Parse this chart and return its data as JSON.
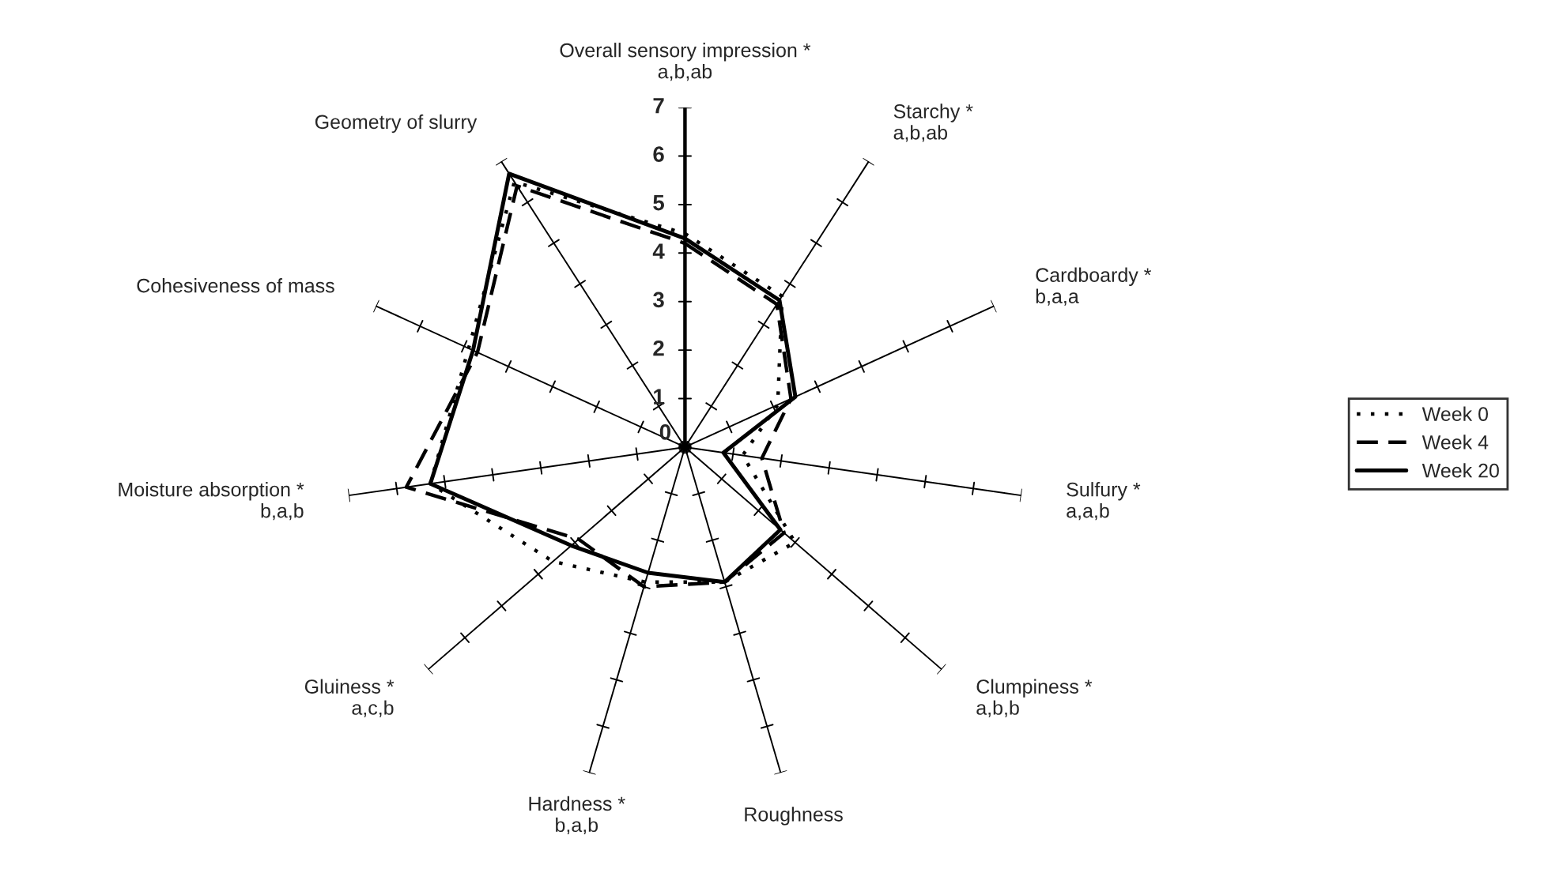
{
  "chart_data": {
    "type": "radar",
    "categories": [
      "Overall sensory impression *\na,b,ab",
      "Starchy *\na,b,ab",
      "Cardboardy *\nb,a,a",
      "Sulfury *\na,a,b",
      "Clumpiness *\na,b,b",
      "Roughness",
      "Hardness *\nb,a,b",
      "Gluiness *\na,c,b",
      "Moisture absorption *\nb,a,b",
      "Cohesiveness of mass",
      "Geometry of slurry"
    ],
    "ylim": [
      0,
      7
    ],
    "yticks": [
      0,
      1,
      2,
      3,
      4,
      5,
      6,
      7
    ],
    "legend": "right",
    "series": [
      {
        "name": "Week 0",
        "color": "#000000",
        "line_style": "dotted",
        "values": [
          4.4,
          3.7,
          2.1,
          1.2,
          3.0,
          2.9,
          2.9,
          3.6,
          5.3,
          4.9,
          6.5
        ]
      },
      {
        "name": "Week 4",
        "color": "#000000",
        "line_style": "dashed",
        "values": [
          4.2,
          3.5,
          2.4,
          1.6,
          2.7,
          2.9,
          3.0,
          2.9,
          5.8,
          4.7,
          6.4
        ]
      },
      {
        "name": "Week 20",
        "color": "#000000",
        "line_style": "solid",
        "values": [
          4.3,
          3.6,
          2.5,
          0.8,
          2.6,
          2.9,
          2.7,
          3.1,
          5.3,
          4.8,
          6.7
        ]
      }
    ]
  }
}
